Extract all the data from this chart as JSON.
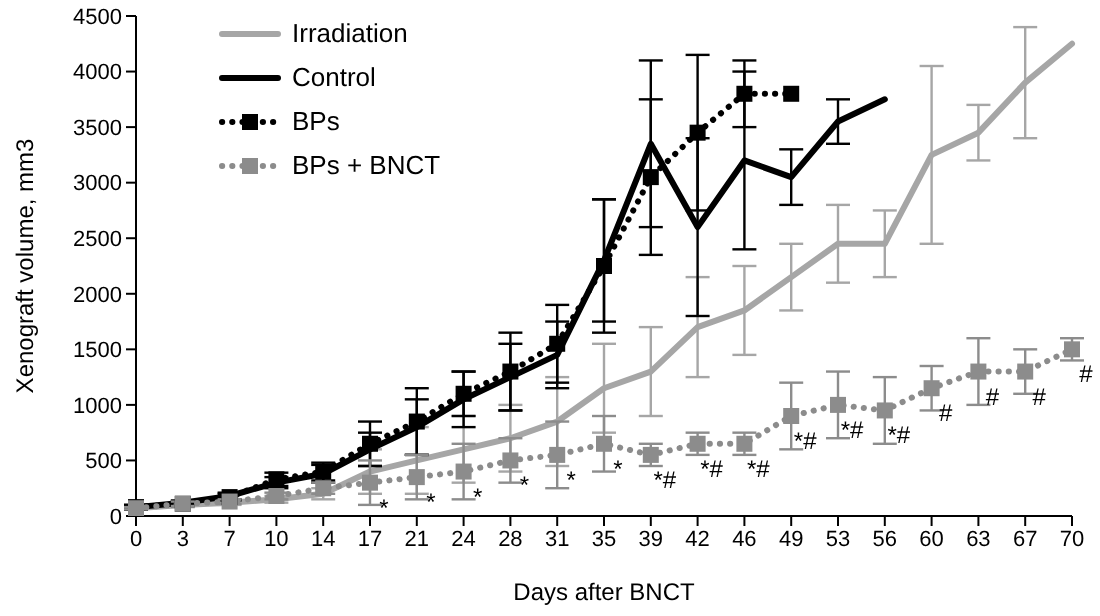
{
  "chart_data": {
    "type": "line",
    "xlabel": "Days after BNCT",
    "ylabel": "Xenograft volume, mm3",
    "categories": [
      "0",
      "3",
      "7",
      "10",
      "14",
      "17",
      "21",
      "24",
      "28",
      "31",
      "35",
      "39",
      "42",
      "46",
      "49",
      "53",
      "56",
      "60",
      "63",
      "67",
      "70"
    ],
    "ylim": [
      0,
      4500
    ],
    "yticks": [
      0,
      500,
      1000,
      1500,
      2000,
      2500,
      3000,
      3500,
      4000,
      4500
    ],
    "grid": false,
    "legend": "top left",
    "series": [
      {
        "name": "Irradiation",
        "color": "#a6a6a6",
        "marker": "none",
        "line_style": "solid",
        "values": [
          70,
          100,
          120,
          150,
          200,
          400,
          500,
          600,
          700,
          850,
          1150,
          1300,
          1700,
          1850,
          2150,
          2450,
          2450,
          3250,
          3450,
          3900,
          4250
        ],
        "errors": [
          10,
          20,
          20,
          30,
          50,
          200,
          300,
          300,
          300,
          400,
          400,
          400,
          450,
          400,
          300,
          350,
          300,
          800,
          250,
          500,
          null
        ]
      },
      {
        "name": "Control",
        "color": "#000000",
        "marker": "none",
        "line_style": "solid",
        "values": [
          80,
          120,
          180,
          300,
          380,
          600,
          800,
          1050,
          1250,
          1450,
          2300,
          3350,
          2600,
          3200,
          3050,
          3550,
          3750,
          null,
          null,
          null,
          null
        ],
        "errors": [
          20,
          20,
          30,
          50,
          80,
          150,
          250,
          250,
          300,
          300,
          550,
          750,
          800,
          800,
          250,
          200,
          null,
          null,
          null,
          null,
          null
        ]
      },
      {
        "name": "BPs",
        "color": "#000000",
        "marker": "square",
        "line_style": "dotted",
        "values": [
          80,
          110,
          170,
          330,
          400,
          650,
          850,
          1100,
          1300,
          1550,
          2250,
          3050,
          3450,
          3800,
          3800,
          null,
          null,
          null,
          null,
          null,
          null
        ],
        "errors": [
          20,
          20,
          30,
          60,
          80,
          200,
          300,
          200,
          350,
          350,
          600,
          700,
          700,
          300,
          null,
          null,
          null,
          null,
          null,
          null,
          null
        ]
      },
      {
        "name": "BPs + BNCT",
        "color": "#8c8c8c",
        "marker": "square",
        "line_style": "dotted",
        "values": [
          70,
          110,
          130,
          180,
          250,
          300,
          350,
          400,
          500,
          550,
          650,
          550,
          650,
          650,
          900,
          1000,
          950,
          1150,
          1300,
          1300,
          1500
        ],
        "errors": [
          10,
          20,
          20,
          30,
          50,
          200,
          200,
          250,
          200,
          300,
          250,
          100,
          100,
          100,
          300,
          300,
          300,
          200,
          300,
          200,
          100
        ]
      }
    ],
    "annotations": [
      {
        "text": "*",
        "x": "17",
        "y": 300
      },
      {
        "text": "*",
        "x": "21",
        "y": 350
      },
      {
        "text": "*",
        "x": "24",
        "y": 400
      },
      {
        "text": "*",
        "x": "28",
        "y": 500
      },
      {
        "text": "*",
        "x": "31",
        "y": 550
      },
      {
        "text": "*",
        "x": "35",
        "y": 650
      },
      {
        "text": "*#",
        "x": "39",
        "y": 550
      },
      {
        "text": "*#",
        "x": "42",
        "y": 650
      },
      {
        "text": "*#",
        "x": "46",
        "y": 650
      },
      {
        "text": "*#",
        "x": "49",
        "y": 900
      },
      {
        "text": "*#",
        "x": "53",
        "y": 1000
      },
      {
        "text": "*#",
        "x": "56",
        "y": 950
      },
      {
        "text": "#",
        "x": "60",
        "y": 1150
      },
      {
        "text": "#",
        "x": "63",
        "y": 1300
      },
      {
        "text": "#",
        "x": "67",
        "y": 1300
      },
      {
        "text": "#",
        "x": "70",
        "y": 1500
      }
    ]
  }
}
